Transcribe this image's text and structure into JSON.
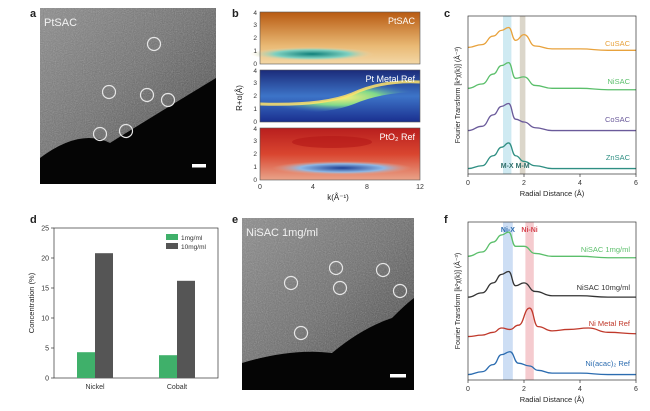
{
  "panel_labels": {
    "a": "a",
    "b": "b",
    "c": "c",
    "d": "d",
    "e": "e",
    "f": "f"
  },
  "panel_a": {
    "image_label": "PtSAC"
  },
  "panel_b": {
    "strips": [
      {
        "label": "PtSAC",
        "palette": "orange"
      },
      {
        "label": "Pt Metal Ref",
        "palette": "jet"
      },
      {
        "label": "PtO₂ Ref",
        "palette": "redblue"
      }
    ],
    "y_label": "R+α(Å)",
    "x_label": "k(Å⁻¹)",
    "x_ticks": [
      "0",
      "4",
      "8",
      "12"
    ],
    "y_ticks": [
      "0",
      "1",
      "2",
      "3",
      "4"
    ]
  },
  "chart_data": [
    {
      "type": "line",
      "panel": "c",
      "xlabel": "Radial Distance (Å)",
      "ylabel": "Fourier Transform [k²χ(k)] (Å⁻³)",
      "xlim": [
        0,
        6
      ],
      "x_ticks": [
        "0",
        "2",
        "4",
        "6"
      ],
      "bands": [
        {
          "label": "M-X",
          "x": [
            1.25,
            1.55
          ],
          "color": "#bfe3ee"
        },
        {
          "label": "M-M",
          "x": [
            1.85,
            2.05
          ],
          "color": "#cfc8b8"
        }
      ],
      "series": [
        {
          "name": "CuSAC",
          "color": "#e8a23c",
          "x": [
            0,
            0.5,
            0.9,
            1.2,
            1.45,
            1.7,
            2.0,
            2.4,
            3.0,
            4.0,
            5.0,
            6.0
          ],
          "y": [
            0.3,
            0.4,
            0.7,
            0.9,
            1.0,
            0.55,
            0.75,
            0.35,
            0.25,
            0.25,
            0.2,
            0.2
          ]
        },
        {
          "name": "NiSAC",
          "color": "#5bbf6b",
          "x": [
            0,
            0.5,
            0.9,
            1.2,
            1.45,
            1.7,
            2.0,
            2.4,
            3.0,
            4.0,
            5.0,
            6.0
          ],
          "y": [
            0.2,
            0.35,
            0.7,
            1.0,
            1.1,
            0.55,
            0.6,
            0.3,
            0.2,
            0.2,
            0.15,
            0.15
          ]
        },
        {
          "name": "CoSAC",
          "color": "#6a5a9a",
          "x": [
            0,
            0.5,
            0.9,
            1.2,
            1.45,
            1.7,
            2.0,
            2.4,
            3.0,
            4.0,
            5.0,
            6.0
          ],
          "y": [
            0.05,
            0.2,
            0.6,
            0.9,
            1.0,
            0.45,
            0.35,
            0.15,
            0.05,
            0.05,
            0.05,
            0.05
          ]
        },
        {
          "name": "ZnSAC",
          "color": "#2f8f83",
          "x": [
            0,
            0.5,
            0.9,
            1.2,
            1.45,
            1.7,
            2.0,
            2.4,
            3.0,
            4.0,
            5.0,
            6.0
          ],
          "y": [
            0.05,
            0.15,
            0.5,
            0.8,
            0.95,
            0.5,
            0.3,
            0.15,
            0.05,
            0.05,
            0.05,
            0.05
          ]
        }
      ]
    },
    {
      "type": "bar",
      "panel": "d",
      "categories": [
        "Nickel",
        "Cobalt"
      ],
      "series": [
        {
          "name": "1mg/ml",
          "color": "#3fb06a",
          "values": [
            4.3,
            3.8
          ]
        },
        {
          "name": "10mg/ml",
          "color": "#555555",
          "values": [
            20.8,
            16.2
          ]
        }
      ],
      "ylabel": "Concentration (%)",
      "ylim": [
        0,
        25
      ],
      "y_ticks": [
        "0",
        "5",
        "10",
        "15",
        "20",
        "25"
      ],
      "legend": "top-right"
    },
    {
      "type": "line",
      "panel": "f",
      "xlabel": "Radial Distance (Å)",
      "ylabel": "Fourier Transform [k²χ(k)] (Å⁻³)",
      "xlim": [
        0,
        6
      ],
      "x_ticks": [
        "0",
        "2",
        "4",
        "6"
      ],
      "bands": [
        {
          "label": "Ni-X",
          "x": [
            1.25,
            1.6
          ],
          "color": "#bcd3f0"
        },
        {
          "label": "Ni-Ni",
          "x": [
            2.05,
            2.35
          ],
          "color": "#f2b9bf"
        }
      ],
      "series": [
        {
          "name": "NiSAC 1mg/ml",
          "color": "#5bbf6b",
          "x": [
            0,
            0.5,
            0.9,
            1.2,
            1.45,
            1.7,
            2.0,
            2.4,
            3.0,
            4.0,
            5.0,
            6.0
          ],
          "y": [
            0.2,
            0.35,
            0.7,
            0.95,
            1.05,
            0.55,
            0.55,
            0.3,
            0.2,
            0.2,
            0.15,
            0.15
          ]
        },
        {
          "name": "NiSAC 10mg/ml",
          "color": "#333333",
          "x": [
            0,
            0.5,
            0.9,
            1.2,
            1.45,
            1.7,
            2.0,
            2.4,
            3.0,
            4.0,
            5.0,
            6.0
          ],
          "y": [
            0.1,
            0.25,
            0.6,
            0.9,
            1.0,
            0.5,
            0.6,
            0.3,
            0.15,
            0.15,
            0.1,
            0.1
          ]
        },
        {
          "name": "Ni Metal Ref",
          "color": "#c0392b",
          "x": [
            0,
            0.5,
            0.9,
            1.2,
            1.5,
            1.8,
            2.2,
            2.5,
            3.0,
            3.6,
            4.3,
            5.0,
            6.0
          ],
          "y": [
            0.05,
            0.1,
            0.2,
            0.35,
            0.3,
            0.45,
            1.05,
            0.4,
            0.25,
            0.3,
            0.35,
            0.2,
            0.15
          ]
        },
        {
          "name": "Ni(acac)₂ Ref",
          "color": "#2b6cb0",
          "x": [
            0,
            0.5,
            0.9,
            1.2,
            1.5,
            1.8,
            2.2,
            2.5,
            3.0,
            4.0,
            5.0,
            6.0
          ],
          "y": [
            0.05,
            0.15,
            0.4,
            0.75,
            0.85,
            0.45,
            0.35,
            0.2,
            0.1,
            0.1,
            0.05,
            0.05
          ]
        }
      ]
    }
  ],
  "panel_e": {
    "image_label": "NiSAC 1mg/ml"
  }
}
